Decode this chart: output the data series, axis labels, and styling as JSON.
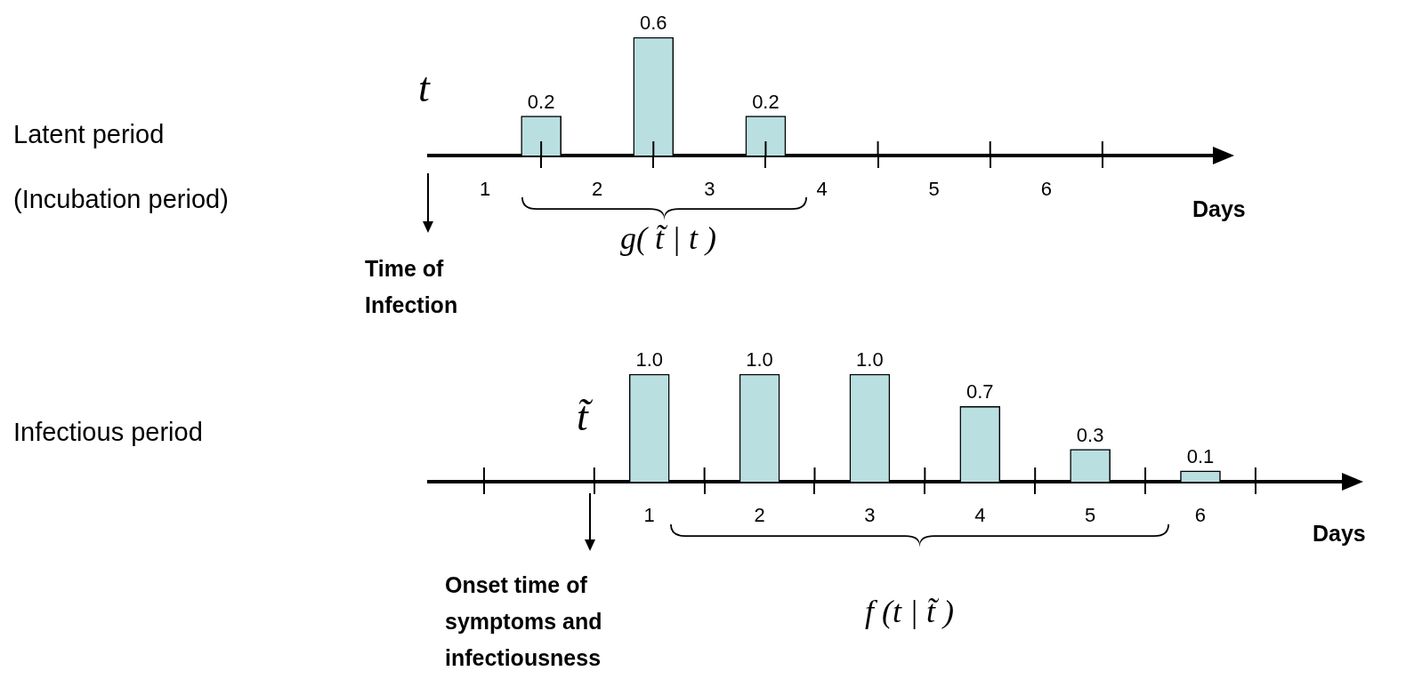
{
  "chart_data": [
    {
      "type": "bar",
      "x": [
        1.5,
        2.5,
        3.5
      ],
      "values": [
        0.2,
        0.6,
        0.2
      ],
      "value_labels": [
        "0.2",
        "0.6",
        "0.2"
      ],
      "color": "#b9dfe1",
      "xlim": [
        0.5,
        7.5
      ],
      "xticks": [
        1,
        {
          "value": 1.5,
          "label": null
        },
        2,
        {
          "value": 2.5,
          "label": null
        },
        3,
        {
          "value": 3.5,
          "label": null
        },
        4,
        {
          "value": 4.5,
          "label": null
        },
        5,
        {
          "value": 5.5,
          "label": null
        },
        6,
        {
          "value": 6.5,
          "label": null
        }
      ],
      "tick_labels": "x",
      "xlabel": "Days",
      "annotations": [
        "Latent period",
        "(Incubation period)",
        "t",
        "Time of Infection",
        "g( t̃ | t )"
      ]
    },
    {
      "type": "bar",
      "x": [
        1,
        2,
        3,
        4,
        5,
        6
      ],
      "values": [
        1.0,
        1.0,
        1.0,
        0.7,
        0.3,
        0.1
      ],
      "value_labels": [
        "1.0",
        "1.0",
        "1.0",
        "0.7",
        "0.3",
        "0.1"
      ],
      "color": "#b9dfe1",
      "xlim": [
        -1,
        7.3
      ],
      "xticks": [
        {
          "value": -0.5,
          "label": null
        },
        {
          "value": 0.5,
          "label": null
        },
        1,
        {
          "value": 1.5,
          "label": null
        },
        2,
        {
          "value": 2.5,
          "label": null
        },
        3,
        {
          "value": 3.5,
          "label": null
        },
        4,
        {
          "value": 4.5,
          "label": null
        },
        5,
        {
          "value": 5.5,
          "label": null
        },
        6,
        {
          "value": 6.5,
          "label": null
        }
      ],
      "tick_labels": "x",
      "xlabel": "Days",
      "annotations": [
        "Infectious period",
        "t̃",
        "Onset time of symptoms and infectiousness",
        "f (t | t̃ )"
      ]
    }
  ]
}
